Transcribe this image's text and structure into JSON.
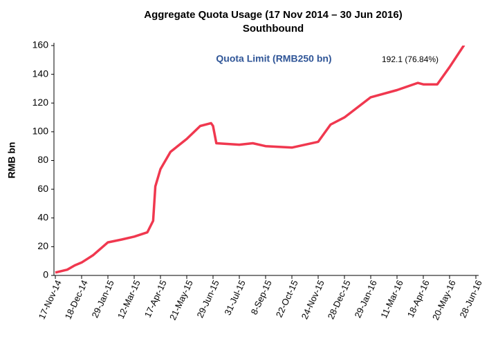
{
  "chart_data": {
    "type": "line",
    "title": "Aggregate Quota Usage (17 Nov 2014 – 30 Jun 2016)",
    "subtitle": "Southbound",
    "y_label": "RMB bn",
    "annotations": [
      "Quota Limit (RMB250 bn)",
      "192.1 (76.84%)"
    ],
    "color": "#f0384f",
    "x": [
      "2014-11-17",
      "2014-12-01",
      "2014-12-10",
      "2014-12-18",
      "2015-01-05",
      "2015-01-29",
      "2015-02-20",
      "2015-03-12",
      "2015-03-30",
      "2015-04-07",
      "2015-04-10",
      "2015-04-17",
      "2015-04-30",
      "2015-05-21",
      "2015-06-10",
      "2015-06-26",
      "2015-06-29",
      "2015-07-03",
      "2015-07-31",
      "2015-08-20",
      "2015-09-08",
      "2015-10-22",
      "2015-11-24",
      "2015-12-10",
      "2015-12-28",
      "2016-01-29",
      "2016-03-11",
      "2016-04-10",
      "2016-04-18",
      "2016-05-05",
      "2016-05-20",
      "2016-06-10",
      "2016-06-30"
    ],
    "values": [
      2,
      4,
      7,
      9,
      14,
      23,
      25,
      27,
      30,
      38,
      62,
      74,
      86,
      95,
      104,
      106,
      104,
      92,
      91,
      92,
      90,
      89,
      93,
      105,
      110,
      124,
      129,
      134,
      133,
      133,
      145,
      160,
      192.1
    ],
    "xlim": [
      "2014-11-17",
      "2016-06-28"
    ],
    "xticks": [
      {
        "value": "2014-11-17",
        "label": "17-Nov-14"
      },
      {
        "value": "2014-12-18",
        "label": "18-Dec-14"
      },
      {
        "value": "2015-01-29",
        "label": "29-Jan-15"
      },
      {
        "value": "2015-03-12",
        "label": "12-Mar-15"
      },
      {
        "value": "2015-04-17",
        "label": "17-Apr-15"
      },
      {
        "value": "2015-05-21",
        "label": "21-May-15"
      },
      {
        "value": "2015-06-29",
        "label": "29-Jun-15"
      },
      {
        "value": "2015-07-31",
        "label": "31-Jul-15"
      },
      {
        "value": "2015-09-08",
        "label": "8-Sep-15"
      },
      {
        "value": "2015-10-22",
        "label": "22-Oct-15"
      },
      {
        "value": "2015-11-24",
        "label": "24-Nov-15"
      },
      {
        "value": "2015-12-28",
        "label": "28-Dec-15"
      },
      {
        "value": "2016-01-29",
        "label": "29-Jan-16"
      },
      {
        "value": "2016-03-11",
        "label": "11-Mar-16"
      },
      {
        "value": "2016-04-18",
        "label": "18-Apr-16"
      },
      {
        "value": "2016-05-20",
        "label": "20-May-16"
      },
      {
        "value": "2016-06-28",
        "label": "28-Jun-16"
      }
    ],
    "ylim": [
      0,
      160
    ],
    "yticks": [
      0,
      20,
      40,
      60,
      80,
      100,
      120,
      140,
      160
    ],
    "grid": false
  }
}
